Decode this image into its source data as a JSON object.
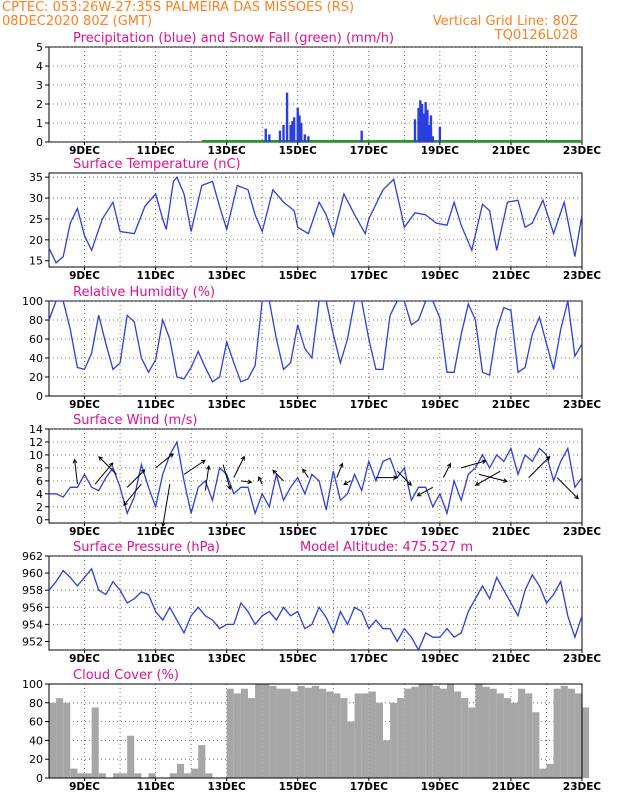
{
  "header": {
    "line1_left": "CPTEC:  053:26W-27:35S  PALMEIRA DAS MISSOES (RS)",
    "line2_left": "08DEC2020 80Z (GMT)",
    "line1_right": "Vertical Grid Line: 80Z",
    "line2_right": "TQ0126L028"
  },
  "x_tick_labels": [
    "9DEC",
    "11DEC",
    "13DEC",
    "15DEC",
    "17DEC",
    "19DEC",
    "21DEC",
    "23DEC"
  ],
  "colors": {
    "header": "#ff7f1e",
    "title": "#e0118e",
    "line": "#2b3fe0",
    "snow": "#1aa01a",
    "cloud": "#a6a6a6",
    "grid": "#555555"
  },
  "chart_data": [
    {
      "type": "bar",
      "title": "Precipitation (blue) and Snow Fall (green) (mm/h)",
      "ylim": [
        0,
        5
      ],
      "yticks": [
        0,
        1,
        2,
        3,
        4,
        5
      ],
      "x": [
        14.1,
        14.2,
        14.5,
        14.6,
        14.7,
        14.8,
        14.85,
        14.9,
        15.0,
        15.05,
        15.1,
        15.2,
        15.3,
        16.8,
        18.3,
        18.4,
        18.45,
        18.5,
        18.55,
        18.6,
        18.65,
        18.7,
        18.75,
        18.8,
        19.0
      ],
      "values": [
        0.7,
        0.4,
        0.6,
        0.9,
        2.6,
        0.9,
        1.1,
        1.3,
        1.8,
        1.4,
        1.0,
        0.4,
        0.3,
        0.6,
        1.2,
        1.8,
        2.2,
        2.0,
        1.5,
        2.1,
        1.7,
        0.9,
        1.4,
        0.3,
        0.8
      ],
      "snow_range": [
        12.3,
        23.0
      ]
    },
    {
      "type": "line",
      "title": "Surface Temperature (nC)",
      "ylim": [
        13.5,
        36
      ],
      "yticks": [
        15,
        20,
        25,
        30,
        35
      ],
      "x": [
        8.0,
        8.2,
        8.4,
        8.6,
        8.8,
        9.0,
        9.2,
        9.5,
        9.8,
        10.0,
        10.4,
        10.7,
        11.0,
        11.2,
        11.3,
        11.5,
        11.6,
        11.8,
        12.0,
        12.3,
        12.6,
        12.8,
        13.0,
        13.3,
        13.6,
        13.8,
        14.0,
        14.3,
        14.6,
        14.9,
        15.0,
        15.3,
        15.6,
        15.8,
        16.0,
        16.3,
        16.6,
        16.9,
        17.0,
        17.4,
        17.7,
        17.9,
        18.0,
        18.3,
        18.6,
        18.9,
        19.2,
        19.4,
        19.6,
        19.9,
        20.2,
        20.4,
        20.6,
        20.9,
        21.2,
        21.4,
        21.6,
        21.9,
        22.2,
        22.5,
        22.8,
        23.0
      ],
      "y": [
        18,
        14.5,
        16,
        24,
        27.5,
        21,
        17.5,
        25,
        29,
        22,
        21.5,
        28,
        31,
        25,
        22.5,
        34,
        35,
        31,
        22,
        33,
        34,
        28,
        22.5,
        33,
        32,
        26,
        22,
        32,
        29,
        27,
        23,
        21.5,
        29,
        26,
        21,
        31,
        26,
        21.5,
        25,
        32,
        34.5,
        27,
        23,
        26.5,
        26,
        24,
        23.5,
        29,
        23.5,
        17.5,
        28.5,
        27,
        17.5,
        29,
        29.5,
        23,
        24,
        29.5,
        21.5,
        29,
        16,
        26
      ]
    },
    {
      "type": "line",
      "title": "Relative Humidity (%)",
      "ylim": [
        0,
        100
      ],
      "yticks": [
        0,
        20,
        40,
        60,
        80,
        100
      ],
      "x": [
        8.0,
        8.2,
        8.4,
        8.6,
        8.8,
        9.0,
        9.2,
        9.4,
        9.6,
        9.8,
        10.0,
        10.2,
        10.4,
        10.6,
        10.8,
        11.0,
        11.2,
        11.4,
        11.6,
        11.8,
        12.0,
        12.2,
        12.4,
        12.6,
        12.8,
        13.0,
        13.2,
        13.4,
        13.6,
        13.8,
        14.0,
        14.2,
        14.4,
        14.6,
        14.8,
        15.0,
        15.2,
        15.4,
        15.6,
        15.8,
        16.0,
        16.2,
        16.4,
        16.6,
        16.8,
        17.0,
        17.2,
        17.4,
        17.6,
        17.8,
        18.0,
        18.2,
        18.4,
        18.6,
        18.8,
        19.0,
        19.2,
        19.4,
        19.6,
        19.8,
        20.0,
        20.2,
        20.4,
        20.6,
        20.8,
        21.0,
        21.2,
        21.4,
        21.6,
        21.8,
        22.0,
        22.2,
        22.4,
        22.6,
        22.8,
        23.0
      ],
      "y": [
        80,
        100,
        100,
        70,
        30,
        28,
        45,
        85,
        55,
        28,
        35,
        85,
        78,
        40,
        25,
        38,
        80,
        60,
        20,
        18,
        30,
        47,
        30,
        15,
        20,
        57,
        35,
        15,
        18,
        32,
        100,
        100,
        60,
        28,
        35,
        75,
        50,
        40,
        100,
        100,
        65,
        35,
        60,
        100,
        100,
        60,
        28,
        28,
        85,
        100,
        100,
        75,
        80,
        100,
        100,
        82,
        25,
        25,
        65,
        97,
        80,
        25,
        22,
        70,
        93,
        90,
        25,
        30,
        65,
        83,
        55,
        28,
        70,
        100,
        42,
        55
      ]
    },
    {
      "type": "line",
      "title": "Surface Wind (m/s)",
      "ylim": [
        -0.5,
        14
      ],
      "yticks": [
        0,
        2,
        4,
        6,
        8,
        10,
        12,
        14
      ],
      "x": [
        8.0,
        8.2,
        8.4,
        8.6,
        8.8,
        9.0,
        9.2,
        9.4,
        9.6,
        9.8,
        10.0,
        10.2,
        10.4,
        10.6,
        10.8,
        11.0,
        11.2,
        11.4,
        11.6,
        11.8,
        12.0,
        12.2,
        12.4,
        12.6,
        12.8,
        13.0,
        13.2,
        13.4,
        13.6,
        13.8,
        14.0,
        14.2,
        14.4,
        14.6,
        14.8,
        15.0,
        15.2,
        15.4,
        15.6,
        15.8,
        16.0,
        16.2,
        16.4,
        16.6,
        16.8,
        17.0,
        17.2,
        17.4,
        17.6,
        17.8,
        18.0,
        18.2,
        18.4,
        18.6,
        18.8,
        19.0,
        19.2,
        19.4,
        19.6,
        19.8,
        20.0,
        20.2,
        20.4,
        20.6,
        20.8,
        21.0,
        21.2,
        21.4,
        21.6,
        21.8,
        22.0,
        22.2,
        22.4,
        22.6,
        22.8,
        23.0
      ],
      "y": [
        4,
        4,
        3.5,
        5,
        5,
        7,
        5,
        4.5,
        6.5,
        8,
        5,
        1,
        3.5,
        8.5,
        5,
        2,
        7,
        10,
        12,
        6,
        1,
        5,
        6,
        3,
        8,
        7,
        4,
        5,
        5,
        1,
        4,
        2,
        7,
        3,
        5,
        6.5,
        4,
        7,
        6,
        1.5,
        7.5,
        3,
        4,
        7,
        4.5,
        9,
        6,
        9,
        9.5,
        6.5,
        8,
        3,
        5,
        5,
        2,
        4,
        1,
        6,
        3,
        7,
        8,
        10,
        8,
        10,
        9,
        11,
        7,
        10,
        9,
        11,
        10,
        6,
        9,
        11,
        5,
        6.5
      ],
      "arrows": [
        {
          "x": 8.8,
          "y": 5.5,
          "u": -0.4,
          "v": 3.5
        },
        {
          "x": 9.3,
          "y": 5.5,
          "u": 2.5,
          "v": 3
        },
        {
          "x": 9.9,
          "y": 7,
          "u": -2.5,
          "v": 2.5
        },
        {
          "x": 10.2,
          "y": 5,
          "u": 2.5,
          "v": 2.5
        },
        {
          "x": 10.6,
          "y": 5.5,
          "u": -2.5,
          "v": -3
        },
        {
          "x": 11.0,
          "y": 8,
          "u": 2.5,
          "v": 2
        },
        {
          "x": 11.4,
          "y": 5.5,
          "u": -1,
          "v": -6
        },
        {
          "x": 11.8,
          "y": 7,
          "u": 3,
          "v": 2
        },
        {
          "x": 12.4,
          "y": 4.5,
          "u": 0.5,
          "v": 3.5
        },
        {
          "x": 12.9,
          "y": 8.5,
          "u": 1,
          "v": -3.5
        },
        {
          "x": 13.2,
          "y": 6.5,
          "u": 1.5,
          "v": 3
        },
        {
          "x": 13.4,
          "y": 6,
          "u": 1.5,
          "v": -0.2
        },
        {
          "x": 14.0,
          "y": 5.5,
          "u": -0.5,
          "v": 1
        },
        {
          "x": 14.6,
          "y": 6,
          "u": -1.5,
          "v": 1.5
        },
        {
          "x": 15.3,
          "y": 6.5,
          "u": -0.8,
          "v": 1.2
        },
        {
          "x": 16.1,
          "y": 6.5,
          "u": 0.8,
          "v": 2
        },
        {
          "x": 16.5,
          "y": 6,
          "u": -1,
          "v": -0.5
        },
        {
          "x": 17.2,
          "y": 6.5,
          "u": 3,
          "v": 0
        },
        {
          "x": 17.8,
          "y": 7.5,
          "u": 2,
          "v": -2
        },
        {
          "x": 18.8,
          "y": 5,
          "u": -2.2,
          "v": -1.2
        },
        {
          "x": 19.1,
          "y": 6.5,
          "u": 1,
          "v": 2
        },
        {
          "x": 19.6,
          "y": 8,
          "u": 3.5,
          "v": 1
        },
        {
          "x": 20.1,
          "y": 7,
          "u": 4,
          "v": -1
        },
        {
          "x": 20.7,
          "y": 7.5,
          "u": -3.5,
          "v": -2
        },
        {
          "x": 21.5,
          "y": 6.5,
          "u": 3,
          "v": 3
        },
        {
          "x": 22.3,
          "y": 6.5,
          "u": 3,
          "v": -3
        }
      ]
    },
    {
      "type": "line",
      "title": "Surface Pressure (hPa)",
      "annotation": "Model Altitude: 475.527 m",
      "ylim": [
        951,
        962
      ],
      "yticks": [
        952,
        954,
        956,
        958,
        960,
        962
      ],
      "x": [
        8.0,
        8.2,
        8.4,
        8.6,
        8.8,
        9.0,
        9.2,
        9.4,
        9.6,
        9.8,
        10.0,
        10.2,
        10.4,
        10.6,
        10.8,
        11.0,
        11.2,
        11.4,
        11.6,
        11.8,
        12.0,
        12.2,
        12.4,
        12.6,
        12.8,
        13.0,
        13.2,
        13.4,
        13.6,
        13.8,
        14.0,
        14.2,
        14.4,
        14.6,
        14.8,
        15.0,
        15.2,
        15.4,
        15.6,
        15.8,
        16.0,
        16.2,
        16.4,
        16.6,
        16.8,
        17.0,
        17.2,
        17.4,
        17.6,
        17.8,
        18.0,
        18.2,
        18.4,
        18.6,
        18.8,
        19.0,
        19.2,
        19.4,
        19.6,
        19.8,
        20.0,
        20.2,
        20.4,
        20.6,
        20.8,
        21.0,
        21.2,
        21.4,
        21.6,
        21.8,
        22.0,
        22.2,
        22.4,
        22.6,
        22.8,
        23.0
      ],
      "y": [
        958,
        959,
        960.3,
        959.5,
        958.5,
        959.5,
        960.5,
        958,
        957.5,
        959,
        958,
        956.5,
        957,
        957.8,
        957.5,
        955.5,
        954.5,
        956,
        954.5,
        953,
        955,
        956,
        955,
        954.5,
        953.5,
        954,
        954,
        956.5,
        955.5,
        954,
        955,
        955.5,
        954.5,
        956,
        955,
        955.5,
        953.5,
        954,
        956,
        954.8,
        953,
        955.5,
        954,
        956,
        955.5,
        953.5,
        954.5,
        953.5,
        953.5,
        952,
        953.5,
        952.5,
        951,
        953,
        952.5,
        952.5,
        953.5,
        952.5,
        953,
        955.5,
        957,
        958.5,
        957,
        959.5,
        958,
        956.5,
        955,
        958,
        959.8,
        958.5,
        956.5,
        957.5,
        959,
        955,
        952.5,
        955
      ]
    },
    {
      "type": "bar",
      "title": "Cloud Cover (%)",
      "ylim": [
        0,
        100
      ],
      "yticks": [
        0,
        20,
        40,
        60,
        80,
        100
      ],
      "x": [
        8.0,
        8.2,
        8.4,
        8.6,
        8.8,
        9.0,
        9.2,
        9.4,
        9.6,
        9.8,
        10.0,
        10.2,
        10.4,
        10.6,
        10.8,
        11.0,
        11.2,
        11.4,
        11.6,
        11.8,
        12.0,
        12.2,
        12.4,
        12.6,
        12.8,
        13.0,
        13.2,
        13.4,
        13.6,
        13.8,
        14.0,
        14.2,
        14.4,
        14.6,
        14.8,
        15.0,
        15.2,
        15.4,
        15.6,
        15.8,
        16.0,
        16.2,
        16.4,
        16.6,
        16.8,
        17.0,
        17.2,
        17.4,
        17.6,
        17.8,
        18.0,
        18.2,
        18.4,
        18.6,
        18.8,
        19.0,
        19.2,
        19.4,
        19.6,
        19.8,
        20.0,
        20.2,
        20.4,
        20.6,
        20.8,
        21.0,
        21.2,
        21.4,
        21.6,
        21.8,
        22.0,
        22.2,
        22.4,
        22.6,
        22.8,
        23.0
      ],
      "values": [
        80,
        85,
        80,
        10,
        5,
        5,
        75,
        5,
        0,
        5,
        5,
        45,
        5,
        0,
        5,
        0,
        0,
        5,
        15,
        5,
        10,
        35,
        5,
        0,
        0,
        95,
        90,
        95,
        85,
        100,
        100,
        98,
        95,
        95,
        92,
        98,
        96,
        98,
        95,
        92,
        90,
        85,
        60,
        90,
        90,
        92,
        80,
        40,
        80,
        85,
        95,
        97,
        100,
        100,
        98,
        95,
        100,
        92,
        85,
        75,
        100,
        97,
        95,
        90,
        85,
        80,
        95,
        90,
        70,
        10,
        15,
        95,
        98,
        95,
        90,
        75
      ]
    }
  ]
}
